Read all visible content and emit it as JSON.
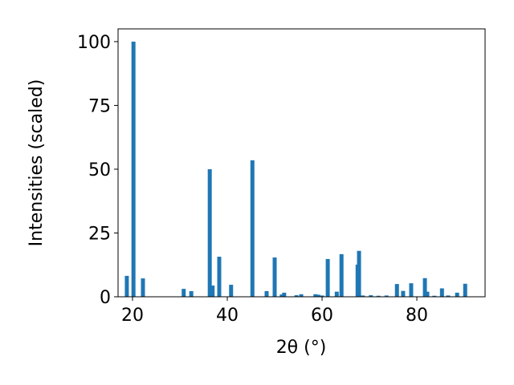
{
  "chart_data": {
    "type": "bar",
    "xlabel": "2θ (°)",
    "ylabel": "Intensities (scaled)",
    "x": [
      18.8,
      20.2,
      22.2,
      30.8,
      32.4,
      36.3,
      36.9,
      38.3,
      40.8,
      45.3,
      48.3,
      50.0,
      51.5,
      52.0,
      54.6,
      55.6,
      58.6,
      59.2,
      60.0,
      61.2,
      63.1,
      64.1,
      67.5,
      67.8,
      68.6,
      70.3,
      71.9,
      73.6,
      75.8,
      77.1,
      78.8,
      81.7,
      82.2,
      83.7,
      85.3,
      86.6,
      88.5,
      90.2
    ],
    "values": [
      8.2,
      100,
      7.2,
      3.1,
      2.2,
      50,
      4.4,
      15.7,
      4.7,
      53.5,
      2.2,
      15.4,
      0.9,
      1.6,
      0.6,
      1.0,
      1.0,
      0.8,
      0.5,
      14.8,
      2.0,
      16.7,
      12.6,
      18,
      0.5,
      0.6,
      0.4,
      0.5,
      5.0,
      2.3,
      5.3,
      7.3,
      2.0,
      0.4,
      3.3,
      0.5,
      1.6,
      5.1
    ],
    "color": "#1f77b4",
    "xlim": [
      16.95,
      94.4
    ],
    "ylim": [
      0,
      105
    ],
    "xticks": [
      20,
      40,
      60,
      80
    ],
    "yticks": [
      0,
      25,
      50,
      75,
      100
    ]
  }
}
